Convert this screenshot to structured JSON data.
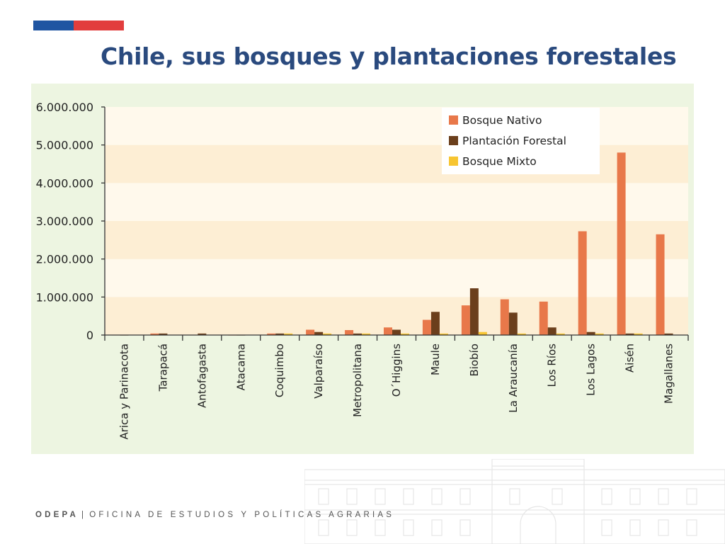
{
  "slide": {
    "title": "Chile, sus bosques y plantaciones forestales",
    "footer": {
      "org": "ODEPA",
      "separator": "|",
      "full_name": "OFICINA DE ESTUDIOS Y POLÍTICAS AGRARIAS"
    }
  },
  "colors": {
    "title": "#2a4a7e",
    "flag_blue": "#1f55a2",
    "flag_red": "#e23d3d",
    "panel_background": "#edf5e1",
    "band_dark": "#fdeed4",
    "band_light": "#fff9ec",
    "bosque_nativo": "#e8784a",
    "plantacion_forestal": "#6b3f1c",
    "bosque_mixto": "#f7c531"
  },
  "chart_data": {
    "type": "bar",
    "title": "",
    "xlabel": "",
    "ylabel": "",
    "ylim": [
      0,
      6000000
    ],
    "yticks": [
      0,
      1000000,
      2000000,
      3000000,
      4000000,
      5000000,
      6000000
    ],
    "ytick_labels": [
      "0",
      "1.000.000",
      "2.000.000",
      "3.000.000",
      "4.000.000",
      "5.000.000",
      "6.000.000"
    ],
    "categories": [
      "Arica y Parinacota",
      "Tarapacá",
      "Antofagasta",
      "Atacama",
      "Coquimbo",
      "Valparaíso",
      "Metropolitana",
      "O´Higgins",
      "Maule",
      "Biobío",
      "La Araucanía",
      "Los Ríos",
      "Los Lagos",
      "Aisén",
      "Magallanes"
    ],
    "series": [
      {
        "name": "Bosque Nativo",
        "color": "#e8784a",
        "values": [
          5000,
          40000,
          5000,
          3000,
          40000,
          140000,
          130000,
          200000,
          400000,
          780000,
          940000,
          880000,
          2730000,
          4800000,
          2650000
        ]
      },
      {
        "name": "Plantación Forestal",
        "color": "#6b3f1c",
        "values": [
          3000,
          40000,
          40000,
          3000,
          40000,
          80000,
          40000,
          140000,
          610000,
          1230000,
          590000,
          200000,
          80000,
          40000,
          40000
        ]
      },
      {
        "name": "Bosque Mixto",
        "color": "#f7c531",
        "values": [
          0,
          0,
          0,
          0,
          40000,
          40000,
          40000,
          40000,
          40000,
          80000,
          40000,
          40000,
          40000,
          40000,
          0
        ]
      }
    ],
    "grid": "horizontal alternating bands",
    "legend_position": "top-right"
  }
}
